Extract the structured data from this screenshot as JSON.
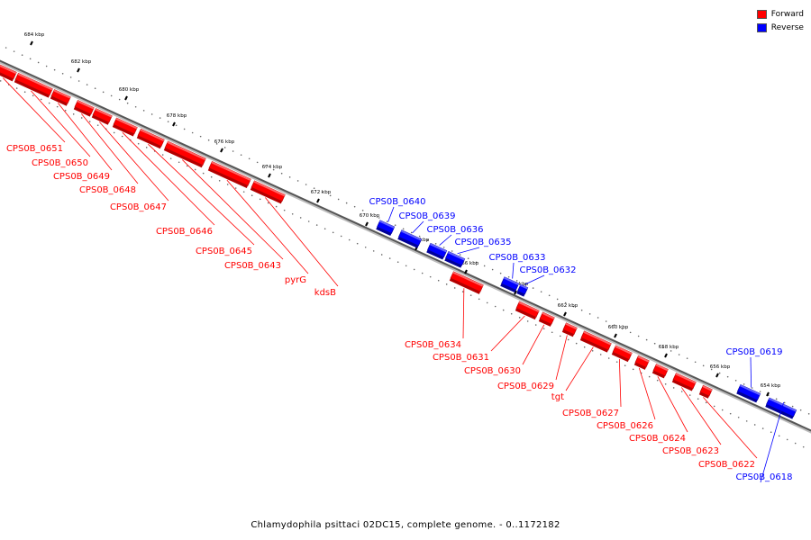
{
  "legend": {
    "forward_label": "Forward",
    "reverse_label": "Reverse",
    "forward_color": "#ff0000",
    "reverse_color": "#0000ff"
  },
  "caption": "Chlamydophila psittaci 02DC15, complete genome. - 0..1172182",
  "ticks": [
    "684 kbp",
    "682 kbp",
    "680 kbp",
    "678 kbp",
    "676 kbp",
    "674 kbp",
    "672 kbp",
    "670 kbp",
    "668 kbp",
    "666 kbp",
    "664 kbp",
    "662 kbp",
    "660 kbp",
    "658 kbp",
    "656 kbp",
    "654 kbp"
  ],
  "genes": [
    {
      "label": "CPS0B_0651",
      "strand": "forward"
    },
    {
      "label": "CPS0B_0650",
      "strand": "forward"
    },
    {
      "label": "CPS0B_0649",
      "strand": "forward"
    },
    {
      "label": "CPS0B_0648",
      "strand": "forward"
    },
    {
      "label": "CPS0B_0647",
      "strand": "forward"
    },
    {
      "label": "CPS0B_0646",
      "strand": "forward"
    },
    {
      "label": "CPS0B_0645",
      "strand": "forward"
    },
    {
      "label": "CPS0B_0643",
      "strand": "forward"
    },
    {
      "label": "pyrG",
      "strand": "forward"
    },
    {
      "label": "kdsB",
      "strand": "forward"
    },
    {
      "label": "CPS0B_0640",
      "strand": "reverse"
    },
    {
      "label": "CPS0B_0639",
      "strand": "reverse"
    },
    {
      "label": "CPS0B_0636",
      "strand": "reverse"
    },
    {
      "label": "CPS0B_0635",
      "strand": "reverse"
    },
    {
      "label": "CPS0B_0633",
      "strand": "reverse"
    },
    {
      "label": "CPS0B_0632",
      "strand": "reverse"
    },
    {
      "label": "CPS0B_0634",
      "strand": "forward"
    },
    {
      "label": "CPS0B_0631",
      "strand": "forward"
    },
    {
      "label": "CPS0B_0630",
      "strand": "forward"
    },
    {
      "label": "CPS0B_0629",
      "strand": "forward"
    },
    {
      "label": "tgt",
      "strand": "forward"
    },
    {
      "label": "CPS0B_0627",
      "strand": "forward"
    },
    {
      "label": "CPS0B_0626",
      "strand": "forward"
    },
    {
      "label": "CPS0B_0624",
      "strand": "forward"
    },
    {
      "label": "CPS0B_0623",
      "strand": "forward"
    },
    {
      "label": "CPS0B_0622",
      "strand": "forward"
    },
    {
      "label": "CPS0B_0619",
      "strand": "reverse"
    },
    {
      "label": "CPS0B_0618",
      "strand": "reverse"
    }
  ]
}
